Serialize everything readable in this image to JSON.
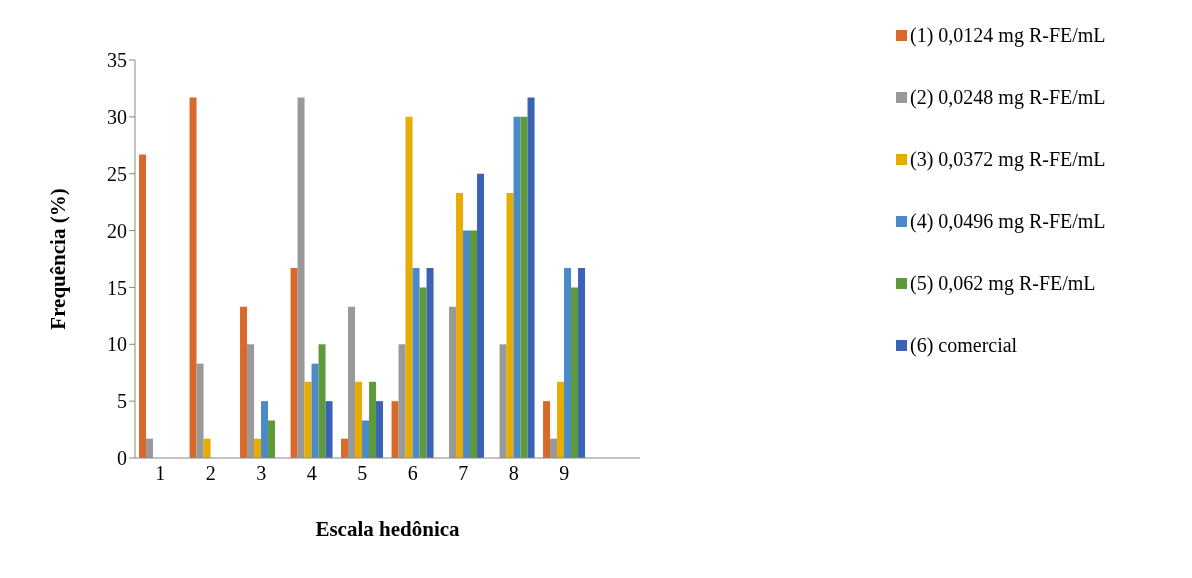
{
  "chart_data": {
    "type": "bar",
    "xlabel": "Escala hedônica",
    "ylabel": "Frequência (%)",
    "categories": [
      "1",
      "2",
      "3",
      "4",
      "5",
      "6",
      "7",
      "8",
      "9",
      null
    ],
    "ylim": [
      0,
      35
    ],
    "yticks": [
      0,
      5,
      10,
      15,
      20,
      25,
      30,
      35
    ],
    "grid": false,
    "legend": "right",
    "series": [
      {
        "name": "(1) 0,0124 mg R-FE/mL",
        "color": "#d9692b",
        "values": [
          26.7,
          31.7,
          13.3,
          16.7,
          1.7,
          5,
          0,
          0,
          5,
          0
        ]
      },
      {
        "name": "(2) 0,0248 mg R-FE/mL",
        "color": "#999999",
        "values": [
          1.7,
          8.3,
          10,
          31.7,
          13.3,
          10,
          13.3,
          10,
          1.7,
          0
        ]
      },
      {
        "name": "(3) 0,0372 mg R-FE/mL",
        "color": "#e6ac00",
        "values": [
          0,
          1.7,
          1.7,
          6.7,
          6.7,
          30,
          23.3,
          23.3,
          6.7,
          0
        ]
      },
      {
        "name": "(4) 0,0496 mg R-FE/mL",
        "color": "#4a8ac9",
        "values": [
          0,
          0,
          5,
          8.3,
          3.3,
          16.7,
          20,
          30,
          16.7,
          0
        ]
      },
      {
        "name": "(5) 0,062 mg R-FE/mL",
        "color": "#5e9a3a",
        "values": [
          0,
          0,
          3.3,
          10,
          6.7,
          15,
          20,
          30,
          15,
          0
        ]
      },
      {
        "name": "(6) comercial",
        "color": "#3a63b5",
        "values": [
          0,
          0,
          0,
          5,
          5,
          16.7,
          25,
          31.7,
          16.7,
          0
        ]
      }
    ]
  }
}
